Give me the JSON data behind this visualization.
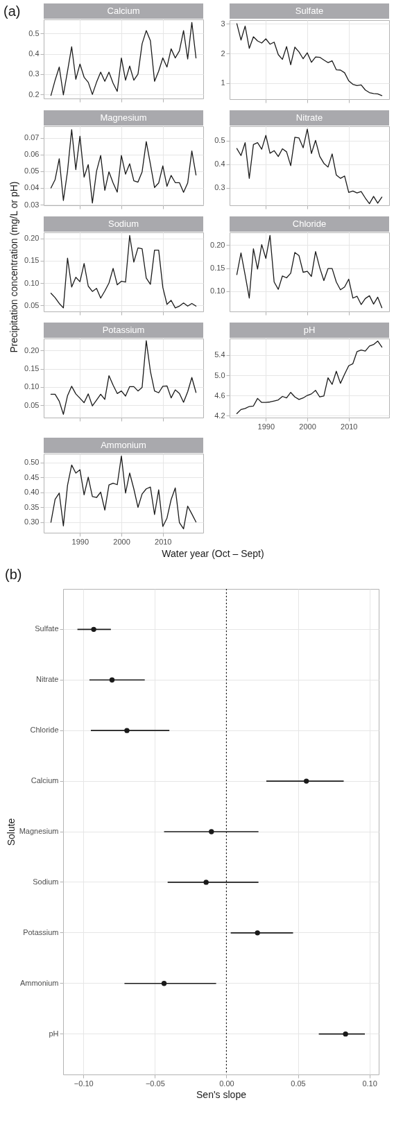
{
  "chart_data": [
    {
      "type": "line",
      "title": "Calcium",
      "annotations": [
        "(a)",
        "Precipitation concentration (mg/L or pH)",
        "Water year (Oct – Sept)"
      ],
      "color": "#1a1a1a",
      "grid": true,
      "tick_labels": "y",
      "x": [
        1983,
        1984,
        1985,
        1986,
        1987,
        1988,
        1989,
        1990,
        1991,
        1992,
        1993,
        1994,
        1995,
        1996,
        1997,
        1998,
        1999,
        2000,
        2001,
        2002,
        2003,
        2004,
        2005,
        2006,
        2007,
        2008,
        2009,
        2010,
        2011,
        2012,
        2013,
        2014,
        2015,
        2016,
        2017,
        2018
      ],
      "values": [
        0.195,
        0.27,
        0.335,
        0.198,
        0.315,
        0.435,
        0.275,
        0.35,
        0.285,
        0.26,
        0.2,
        0.26,
        0.31,
        0.265,
        0.31,
        0.255,
        0.215,
        0.38,
        0.27,
        0.34,
        0.27,
        0.3,
        0.45,
        0.515,
        0.465,
        0.265,
        0.315,
        0.38,
        0.335,
        0.425,
        0.38,
        0.415,
        0.515,
        0.375,
        0.555,
        0.38
      ],
      "xlim": [
        1981.25,
        2019.75
      ],
      "xticks": [
        1990,
        2000,
        2010
      ],
      "ylim": [
        0.18,
        0.57
      ],
      "yticks": [
        0.2,
        0.3,
        0.4,
        0.5
      ]
    },
    {
      "type": "line",
      "title": "Sulfate",
      "color": "#1a1a1a",
      "grid": true,
      "tick_labels": "y",
      "x": [
        1983,
        1984,
        1985,
        1986,
        1987,
        1988,
        1989,
        1990,
        1991,
        1992,
        1993,
        1994,
        1995,
        1996,
        1997,
        1998,
        1999,
        2000,
        2001,
        2002,
        2003,
        2004,
        2005,
        2006,
        2007,
        2008,
        2009,
        2010,
        2011,
        2012,
        2013,
        2014,
        2015,
        2016,
        2017,
        2018
      ],
      "values": [
        3.0,
        2.45,
        2.92,
        2.17,
        2.56,
        2.42,
        2.35,
        2.49,
        2.31,
        2.38,
        1.96,
        1.8,
        2.23,
        1.62,
        2.21,
        2.05,
        1.82,
        2.02,
        1.7,
        1.88,
        1.87,
        1.78,
        1.69,
        1.75,
        1.45,
        1.44,
        1.35,
        1.08,
        0.96,
        0.92,
        0.94,
        0.77,
        0.68,
        0.65,
        0.64,
        0.58
      ],
      "xlim": [
        1981.25,
        2019.75
      ],
      "xticks": [
        1990,
        2000,
        2010
      ],
      "ylim": [
        0.46,
        3.12
      ],
      "yticks": [
        1,
        2,
        3
      ]
    },
    {
      "type": "line",
      "title": "Magnesium",
      "color": "#1a1a1a",
      "grid": true,
      "tick_labels": "y",
      "x": [
        1983,
        1984,
        1985,
        1986,
        1987,
        1988,
        1989,
        1990,
        1991,
        1992,
        1993,
        1994,
        1995,
        1996,
        1997,
        1998,
        1999,
        2000,
        2001,
        2002,
        2003,
        2004,
        2005,
        2006,
        2007,
        2008,
        2009,
        2010,
        2011,
        2012,
        2013,
        2014,
        2015,
        2016,
        2017,
        2018
      ],
      "values": [
        0.04,
        0.045,
        0.0575,
        0.0325,
        0.05,
        0.075,
        0.051,
        0.071,
        0.0465,
        0.054,
        0.031,
        0.05,
        0.0595,
        0.0386,
        0.0497,
        0.043,
        0.0375,
        0.0595,
        0.0483,
        0.0545,
        0.0443,
        0.0435,
        0.0497,
        0.0678,
        0.0543,
        0.0403,
        0.043,
        0.0532,
        0.041,
        0.0475,
        0.0432,
        0.0432,
        0.0374,
        0.043,
        0.0622,
        0.0478
      ],
      "xlim": [
        1981.25,
        2019.75
      ],
      "xticks": [
        1990,
        2000,
        2010
      ],
      "ylim": [
        0.0296,
        0.077
      ],
      "yticks": [
        0.03,
        0.04,
        0.05,
        0.06,
        0.07
      ]
    },
    {
      "type": "line",
      "title": "Nitrate",
      "color": "#1a1a1a",
      "grid": true,
      "tick_labels": "y",
      "x": [
        1983,
        1984,
        1985,
        1986,
        1987,
        1988,
        1989,
        1990,
        1991,
        1992,
        1993,
        1994,
        1995,
        1996,
        1997,
        1998,
        1999,
        2000,
        2001,
        2002,
        2003,
        2004,
        2005,
        2006,
        2007,
        2008,
        2009,
        2010,
        2011,
        2012,
        2013,
        2014,
        2015,
        2016,
        2017,
        2018
      ],
      "values": [
        0.467,
        0.437,
        0.492,
        0.34,
        0.484,
        0.492,
        0.464,
        0.523,
        0.447,
        0.458,
        0.433,
        0.466,
        0.453,
        0.394,
        0.515,
        0.512,
        0.47,
        0.55,
        0.446,
        0.502,
        0.434,
        0.404,
        0.388,
        0.444,
        0.354,
        0.34,
        0.35,
        0.28,
        0.286,
        0.278,
        0.284,
        0.256,
        0.232,
        0.263,
        0.234,
        0.26
      ],
      "xlim": [
        1981.25,
        2019.75
      ],
      "xticks": [
        1990,
        2000,
        2010
      ],
      "ylim": [
        0.225,
        0.562
      ],
      "yticks": [
        0.3,
        0.4,
        0.5
      ]
    },
    {
      "type": "line",
      "title": "Sodium",
      "color": "#1a1a1a",
      "grid": true,
      "tick_labels": "y",
      "x": [
        1983,
        1984,
        1985,
        1986,
        1987,
        1988,
        1989,
        1990,
        1991,
        1992,
        1993,
        1994,
        1995,
        1996,
        1997,
        1998,
        1999,
        2000,
        2001,
        2002,
        2003,
        2004,
        2005,
        2006,
        2007,
        2008,
        2009,
        2010,
        2011,
        2012,
        2013,
        2014,
        2015,
        2016,
        2017,
        2018
      ],
      "values": [
        0.077,
        0.067,
        0.054,
        0.044,
        0.156,
        0.091,
        0.113,
        0.103,
        0.144,
        0.093,
        0.081,
        0.088,
        0.066,
        0.082,
        0.1,
        0.133,
        0.096,
        0.104,
        0.102,
        0.207,
        0.147,
        0.179,
        0.177,
        0.111,
        0.097,
        0.174,
        0.174,
        0.09,
        0.052,
        0.061,
        0.044,
        0.048,
        0.055,
        0.048,
        0.054,
        0.048
      ],
      "xlim": [
        1981.25,
        2019.75
      ],
      "xticks": [
        1990,
        2000,
        2010
      ],
      "ylim": [
        0.036,
        0.214
      ],
      "yticks": [
        0.05,
        {
          "value": 0.1,
          "label": "0.10"
        },
        0.15,
        {
          "value": 0.2,
          "label": "0.20"
        }
      ]
    },
    {
      "type": "line",
      "title": "Chloride",
      "color": "#1a1a1a",
      "grid": true,
      "tick_labels": "y",
      "x": [
        1983,
        1984,
        1985,
        1986,
        1987,
        1988,
        1989,
        1990,
        1991,
        1992,
        1993,
        1994,
        1995,
        1996,
        1997,
        1998,
        1999,
        2000,
        2001,
        2002,
        2003,
        2004,
        2005,
        2006,
        2007,
        2008,
        2009,
        2010,
        2011,
        2012,
        2013,
        2014,
        2015,
        2016,
        2017,
        2018
      ],
      "values": [
        0.136,
        0.183,
        0.135,
        0.085,
        0.192,
        0.148,
        0.201,
        0.171,
        0.221,
        0.12,
        0.104,
        0.133,
        0.129,
        0.139,
        0.184,
        0.177,
        0.141,
        0.143,
        0.132,
        0.186,
        0.151,
        0.123,
        0.149,
        0.149,
        0.12,
        0.103,
        0.109,
        0.126,
        0.085,
        0.089,
        0.071,
        0.084,
        0.09,
        0.072,
        0.087,
        0.064
      ],
      "xlim": [
        1981.25,
        2019.75
      ],
      "xticks": [
        1990,
        2000,
        2010
      ],
      "ylim": [
        0.056,
        0.2275
      ],
      "yticks": [
        {
          "value": 0.1,
          "label": "0.10"
        },
        0.15,
        {
          "value": 0.2,
          "label": "0.20"
        }
      ]
    },
    {
      "type": "line",
      "title": "Potassium",
      "color": "#1a1a1a",
      "grid": true,
      "tick_labels": "y",
      "x": [
        1983,
        1984,
        1985,
        1986,
        1987,
        1988,
        1989,
        1990,
        1991,
        1992,
        1993,
        1994,
        1995,
        1996,
        1997,
        1998,
        1999,
        2000,
        2001,
        2002,
        2003,
        2004,
        2005,
        2006,
        2007,
        2008,
        2009,
        2010,
        2011,
        2012,
        2013,
        2014,
        2015,
        2016,
        2017,
        2018
      ],
      "values": [
        0.08,
        0.08,
        0.061,
        0.025,
        0.076,
        0.102,
        0.081,
        0.069,
        0.057,
        0.081,
        0.048,
        0.064,
        0.08,
        0.066,
        0.131,
        0.105,
        0.082,
        0.089,
        0.075,
        0.101,
        0.101,
        0.089,
        0.099,
        0.227,
        0.143,
        0.089,
        0.084,
        0.102,
        0.103,
        0.07,
        0.092,
        0.082,
        0.058,
        0.087,
        0.126,
        0.085
      ],
      "xlim": [
        1981.25,
        2019.75
      ],
      "xticks": [
        1990,
        2000,
        2010
      ],
      "ylim": [
        0.016,
        0.233
      ],
      "yticks": [
        0.05,
        {
          "value": 0.1,
          "label": "0.10"
        },
        0.15,
        {
          "value": 0.2,
          "label": "0.20"
        }
      ]
    },
    {
      "type": "line",
      "title": "pH",
      "color": "#1a1a1a",
      "grid": true,
      "x": [
        1983,
        1984,
        1985,
        1986,
        1987,
        1988,
        1989,
        1990,
        1991,
        1992,
        1993,
        1994,
        1995,
        1996,
        1997,
        1998,
        1999,
        2000,
        2001,
        2002,
        2003,
        2004,
        2005,
        2006,
        2007,
        2008,
        2009,
        2010,
        2011,
        2012,
        2013,
        2014,
        2015,
        2016,
        2017,
        2018
      ],
      "values": [
        4.24,
        4.32,
        4.34,
        4.38,
        4.39,
        4.54,
        4.46,
        4.46,
        4.47,
        4.49,
        4.51,
        4.58,
        4.55,
        4.66,
        4.57,
        4.52,
        4.55,
        4.6,
        4.63,
        4.7,
        4.57,
        4.59,
        4.95,
        4.82,
        5.08,
        4.84,
        5.02,
        5.19,
        5.23,
        5.47,
        5.5,
        5.48,
        5.58,
        5.61,
        5.68,
        5.56
      ],
      "xlim": [
        1981.25,
        2019.75
      ],
      "xticks": [
        1990,
        2000,
        2010
      ],
      "ylim": [
        4.16,
        5.73
      ],
      "yticks": [
        4.2,
        4.6,
        {
          "value": 5.0,
          "label": "5.0"
        },
        5.4
      ]
    },
    {
      "type": "line",
      "title": "Ammonium",
      "color": "#1a1a1a",
      "grid": true,
      "x": [
        1983,
        1984,
        1985,
        1986,
        1987,
        1988,
        1989,
        1990,
        1991,
        1992,
        1993,
        1994,
        1995,
        1996,
        1997,
        1998,
        1999,
        2000,
        2001,
        2002,
        2003,
        2004,
        2005,
        2006,
        2007,
        2008,
        2009,
        2010,
        2011,
        2012,
        2013,
        2014,
        2015,
        2016,
        2017,
        2018
      ],
      "values": [
        0.3,
        0.377,
        0.398,
        0.288,
        0.424,
        0.492,
        0.465,
        0.476,
        0.392,
        0.451,
        0.386,
        0.383,
        0.401,
        0.341,
        0.425,
        0.431,
        0.426,
        0.522,
        0.398,
        0.465,
        0.412,
        0.35,
        0.395,
        0.412,
        0.418,
        0.326,
        0.409,
        0.286,
        0.314,
        0.376,
        0.415,
        0.299,
        0.278,
        0.354,
        0.328,
        0.301
      ],
      "xlim": [
        1981.25,
        2019.75
      ],
      "xticks": [
        1990,
        2000,
        2010
      ],
      "ylim": [
        0.265,
        0.53
      ],
      "yticks": [
        {
          "value": 0.3,
          "label": "0.30"
        },
        0.35,
        {
          "value": 0.4,
          "label": "0.40"
        },
        0.45,
        {
          "value": 0.5,
          "label": "0.50"
        }
      ]
    },
    {
      "type": "scatter",
      "orientation": "horizontal",
      "annotations": [
        "(b)"
      ],
      "xlabel": "Sen's slope",
      "ylabel": "Solute",
      "color": "#1a1a1a",
      "marker": "circle",
      "grid": true,
      "categories": [
        "Sulfate",
        "Nitrate",
        "Chloride",
        "Calcium",
        "Magnesium",
        "Sodium",
        "Potassium",
        "Ammonium",
        "pH"
      ],
      "values": [
        -0.0928,
        -0.08,
        -0.0696,
        0.0559,
        -0.0105,
        -0.0142,
        0.0217,
        -0.0436,
        0.0833
      ],
      "errors": [
        [
          -0.1042,
          -0.0808
        ],
        [
          -0.0958,
          -0.0571
        ],
        [
          -0.0948,
          -0.0399
        ],
        [
          0.0279,
          0.082
        ],
        [
          -0.0436,
          0.0224
        ],
        [
          -0.0411,
          0.0224
        ],
        [
          0.003,
          0.0466
        ],
        [
          -0.0713,
          -0.0072
        ],
        [
          0.0646,
          0.0968
        ]
      ],
      "xlim": [
        -0.1142,
        0.1065
      ],
      "xticks": [
        {
          "value": -0.1,
          "label": "−0.10"
        },
        {
          "value": -0.05,
          "label": "−0.05"
        },
        {
          "value": 0,
          "label": "0.00"
        },
        0.05,
        {
          "value": 0.1,
          "label": "0.10"
        }
      ],
      "ref_lines": [
        {
          "axis": "x",
          "value": 0,
          "line_style": "dotted"
        }
      ]
    }
  ]
}
